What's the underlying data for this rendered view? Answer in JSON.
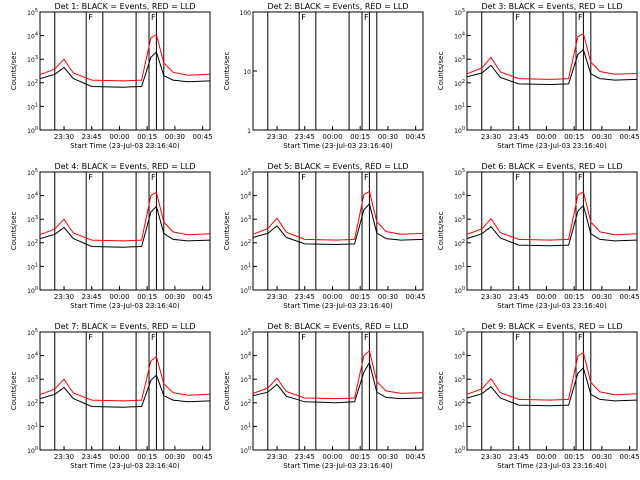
{
  "figure": {
    "xlabel": "Start Time (23-Jul-03 23:16:40)",
    "ylabel": "Counts/sec",
    "legend_text": "BLACK = Events, RED = LLD",
    "series_colors": {
      "Events": "#000000",
      "LLD": "#ff0000"
    }
  },
  "chart_data": [
    {
      "type": "line",
      "title": "Det 1: BLACK = Events, RED = LLD",
      "xlabel": "Start Time (23-Jul-03 23:16:40)",
      "ylabel": "Counts/sec",
      "x_ticks": [
        "23:30",
        "23:45",
        "00:00",
        "00:15",
        "00:30",
        "00:45"
      ],
      "y_ticks": [
        "10^0",
        "10^1",
        "10^2",
        "10^3",
        "10^4",
        "10^5"
      ],
      "yscale": "log",
      "ylim": [
        1,
        100000
      ],
      "xlim_minutes": [
        0,
        92
      ],
      "x_minutes": [
        0,
        8,
        13,
        18,
        28,
        45,
        55,
        60,
        63,
        67,
        72,
        80,
        92
      ],
      "series": [
        {
          "name": "Events",
          "values": [
            150,
            230,
            450,
            150,
            70,
            65,
            70,
            1200,
            2000,
            200,
            130,
            110,
            120
          ]
        },
        {
          "name": "LLD",
          "values": [
            220,
            380,
            1000,
            260,
            130,
            120,
            130,
            8000,
            11000,
            700,
            280,
            210,
            230
          ]
        }
      ],
      "flags": [
        "F",
        "F"
      ]
    },
    {
      "type": "line",
      "title": "Det 2: BLACK = Events, RED = LLD",
      "xlabel": "Start Time (23-Jul-03 23:16:40)",
      "ylabel": "Counts/sec",
      "x_ticks": [
        "23:30",
        "23:45",
        "00:00",
        "00:15",
        "00:30",
        "00:45"
      ],
      "y_ticks": [
        "1",
        "10",
        "100"
      ],
      "yscale": "log",
      "ylim": [
        1,
        100
      ],
      "xlim_minutes": [
        0,
        92
      ],
      "x_minutes": [],
      "series": [
        {
          "name": "Events",
          "values": []
        },
        {
          "name": "LLD",
          "values": []
        }
      ],
      "flags": [
        "F",
        "F"
      ]
    },
    {
      "type": "line",
      "title": "Det 3: BLACK = Events, RED = LLD",
      "xlabel": "Start Time (23-Jul-03 23:16:40)",
      "ylabel": "Counts/sec",
      "x_ticks": [
        "23:30",
        "23:45",
        "00:00",
        "00:15",
        "00:30",
        "00:45"
      ],
      "y_ticks": [
        "10^0",
        "10^1",
        "10^2",
        "10^3",
        "10^4",
        "10^5"
      ],
      "yscale": "log",
      "ylim": [
        1,
        100000
      ],
      "xlim_minutes": [
        0,
        92
      ],
      "x_minutes": [
        0,
        8,
        13,
        18,
        28,
        45,
        55,
        60,
        63,
        67,
        72,
        80,
        92
      ],
      "series": [
        {
          "name": "Events",
          "values": [
            180,
            260,
            550,
            170,
            90,
            85,
            90,
            1600,
            2500,
            240,
            150,
            130,
            140
          ]
        },
        {
          "name": "LLD",
          "values": [
            240,
            420,
            1200,
            290,
            150,
            140,
            150,
            9000,
            12000,
            750,
            300,
            230,
            250
          ]
        }
      ],
      "flags": [
        "F",
        "F"
      ]
    },
    {
      "type": "line",
      "title": "Det 4: BLACK = Events, RED = LLD",
      "xlabel": "Start Time (23-Jul-03 23:16:40)",
      "ylabel": "Counts/sec",
      "x_ticks": [
        "23:30",
        "23:45",
        "00:00",
        "00:15",
        "00:30",
        "00:45"
      ],
      "y_ticks": [
        "10^0",
        "10^1",
        "10^2",
        "10^3",
        "10^4",
        "10^5"
      ],
      "yscale": "log",
      "ylim": [
        1,
        100000
      ],
      "xlim_minutes": [
        0,
        92
      ],
      "x_minutes": [
        0,
        8,
        13,
        18,
        28,
        45,
        55,
        60,
        63,
        67,
        72,
        80,
        92
      ],
      "series": [
        {
          "name": "Events",
          "values": [
            150,
            230,
            450,
            150,
            70,
            65,
            70,
            2000,
            3500,
            250,
            140,
            120,
            130
          ]
        },
        {
          "name": "LLD",
          "values": [
            220,
            380,
            1000,
            260,
            130,
            120,
            130,
            10000,
            14000,
            750,
            290,
            220,
            240
          ]
        }
      ],
      "flags": [
        "F",
        "F"
      ]
    },
    {
      "type": "line",
      "title": "Det 5: BLACK = Events, RED = LLD",
      "xlabel": "Start Time (23-Jul-03 23:16:40)",
      "ylabel": "Counts/sec",
      "x_ticks": [
        "23:30",
        "23:45",
        "00:00",
        "00:15",
        "00:30",
        "00:45"
      ],
      "y_ticks": [
        "10^0",
        "10^1",
        "10^2",
        "10^3",
        "10^4",
        "10^5"
      ],
      "yscale": "log",
      "ylim": [
        1,
        100000
      ],
      "xlim_minutes": [
        0,
        92
      ],
      "x_minutes": [
        0,
        8,
        13,
        18,
        28,
        45,
        55,
        60,
        63,
        67,
        72,
        80,
        92
      ],
      "series": [
        {
          "name": "Events",
          "values": [
            170,
            250,
            520,
            170,
            90,
            85,
            90,
            2500,
            4500,
            260,
            150,
            130,
            140
          ]
        },
        {
          "name": "LLD",
          "values": [
            230,
            400,
            1100,
            280,
            140,
            130,
            140,
            11000,
            15000,
            780,
            300,
            230,
            250
          ]
        }
      ],
      "flags": [
        "F",
        "F"
      ]
    },
    {
      "type": "line",
      "title": "Det 6: BLACK = Events, RED = LLD",
      "xlabel": "Start Time (23-Jul-03 23:16:40)",
      "ylabel": "Counts/sec",
      "x_ticks": [
        "23:30",
        "23:45",
        "00:00",
        "00:15",
        "00:30",
        "00:45"
      ],
      "y_ticks": [
        "10^0",
        "10^1",
        "10^2",
        "10^3",
        "10^4",
        "10^5"
      ],
      "yscale": "log",
      "ylim": [
        1,
        100000
      ],
      "xlim_minutes": [
        0,
        92
      ],
      "x_minutes": [
        0,
        8,
        13,
        18,
        28,
        45,
        55,
        60,
        63,
        67,
        72,
        80,
        92
      ],
      "series": [
        {
          "name": "Events",
          "values": [
            150,
            240,
            480,
            160,
            80,
            75,
            80,
            2200,
            3800,
            240,
            140,
            120,
            130
          ]
        },
        {
          "name": "LLD",
          "values": [
            230,
            390,
            1050,
            270,
            140,
            130,
            140,
            10500,
            14500,
            760,
            290,
            220,
            240
          ]
        }
      ],
      "flags": [
        "F",
        "F"
      ]
    },
    {
      "type": "line",
      "title": "Det 7: BLACK = Events, RED = LLD",
      "xlabel": "Start Time (23-Jul-03 23:16:40)",
      "ylabel": "Counts/sec",
      "x_ticks": [
        "23:30",
        "23:45",
        "00:00",
        "00:15",
        "00:30",
        "00:45"
      ],
      "y_ticks": [
        "10^0",
        "10^1",
        "10^2",
        "10^3",
        "10^4",
        "10^5"
      ],
      "yscale": "log",
      "ylim": [
        1,
        100000
      ],
      "xlim_minutes": [
        0,
        92
      ],
      "x_minutes": [
        0,
        8,
        13,
        18,
        28,
        45,
        55,
        60,
        63,
        67,
        72,
        80,
        92
      ],
      "series": [
        {
          "name": "Events",
          "values": [
            150,
            230,
            450,
            150,
            70,
            65,
            70,
            900,
            1500,
            200,
            130,
            110,
            120
          ]
        },
        {
          "name": "LLD",
          "values": [
            220,
            380,
            1000,
            260,
            130,
            120,
            130,
            6000,
            9000,
            650,
            270,
            210,
            230
          ]
        }
      ],
      "flags": [
        "F",
        "F"
      ]
    },
    {
      "type": "line",
      "title": "Det 8: BLACK = Events, RED = LLD",
      "xlabel": "Start Time (23-Jul-03 23:16:40)",
      "ylabel": "Counts/sec",
      "x_ticks": [
        "23:30",
        "23:45",
        "00:00",
        "00:15",
        "00:30",
        "00:45"
      ],
      "y_ticks": [
        "10^0",
        "10^1",
        "10^2",
        "10^3",
        "10^4",
        "10^5"
      ],
      "yscale": "log",
      "ylim": [
        1,
        100000
      ],
      "xlim_minutes": [
        0,
        92
      ],
      "x_minutes": [
        0,
        8,
        13,
        18,
        28,
        45,
        55,
        60,
        63,
        67,
        72,
        80,
        92
      ],
      "series": [
        {
          "name": "Events",
          "values": [
            200,
            280,
            600,
            190,
            110,
            100,
            110,
            2000,
            5000,
            280,
            170,
            150,
            160
          ]
        },
        {
          "name": "LLD",
          "values": [
            250,
            420,
            1100,
            300,
            160,
            150,
            160,
            10000,
            16000,
            800,
            320,
            250,
            270
          ]
        }
      ],
      "flags": [
        "F",
        "F"
      ]
    },
    {
      "type": "line",
      "title": "Det 9: BLACK = Events, RED = LLD",
      "xlabel": "Start Time (23-Jul-03 23:16:40)",
      "ylabel": "Counts/sec",
      "x_ticks": [
        "23:30",
        "23:45",
        "00:00",
        "00:15",
        "00:30",
        "00:45"
      ],
      "y_ticks": [
        "10^0",
        "10^1",
        "10^2",
        "10^3",
        "10^4",
        "10^5"
      ],
      "yscale": "log",
      "ylim": [
        1,
        100000
      ],
      "xlim_minutes": [
        0,
        92
      ],
      "x_minutes": [
        0,
        8,
        13,
        18,
        28,
        45,
        55,
        60,
        63,
        67,
        72,
        80,
        92
      ],
      "series": [
        {
          "name": "Events",
          "values": [
            160,
            240,
            480,
            160,
            80,
            75,
            80,
            1800,
            3000,
            230,
            140,
            120,
            130
          ]
        },
        {
          "name": "LLD",
          "values": [
            230,
            390,
            1050,
            270,
            140,
            130,
            140,
            9500,
            13500,
            740,
            290,
            220,
            240
          ]
        }
      ],
      "flags": [
        "F",
        "F"
      ]
    }
  ],
  "marker_times_minutes": [
    0,
    8,
    25,
    34,
    52,
    59,
    63,
    67,
    92
  ]
}
